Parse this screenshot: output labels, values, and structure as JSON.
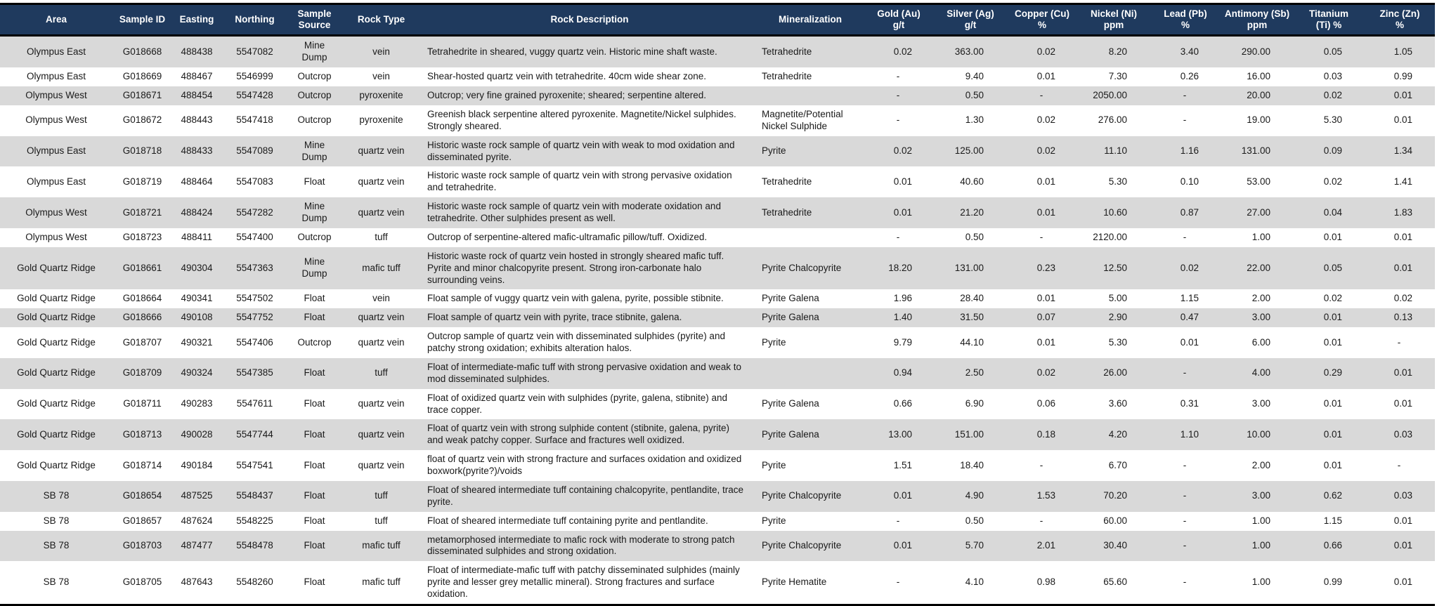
{
  "colors": {
    "header_bg": "#1f3a5e",
    "header_text": "#ffffff",
    "row_alt_bg": "#d9d9d9",
    "row_bg": "#ffffff",
    "border": "#000000",
    "body_text": "#1a1a1a"
  },
  "table": {
    "columns": [
      "Area",
      "Sample ID",
      "Easting",
      "Northing",
      "Sample\nSource",
      "Rock Type",
      "Rock Description",
      "Mineralization",
      "Gold (Au)\ng/t",
      "Silver (Ag)\ng/t",
      "Copper (Cu)\n%",
      "Nickel (Ni)\nppm",
      "Lead (Pb)\n%",
      "Antimony (Sb)\nppm",
      "Titanium\n(Ti) %",
      "Zinc (Zn)\n%"
    ],
    "rows": [
      [
        "Olympus East",
        "G018668",
        "488438",
        "5547082",
        "Mine Dump",
        "vein",
        "Tetrahedrite in sheared, vuggy quartz vein. Historic mine shaft waste.",
        "Tetrahedrite",
        "0.02",
        "363.00",
        "0.02",
        "8.20",
        "3.40",
        "290.00",
        "0.05",
        "1.05"
      ],
      [
        "Olympus East",
        "G018669",
        "488467",
        "5546999",
        "Outcrop",
        "vein",
        "Shear-hosted quartz vein with tetrahedrite. 40cm wide shear zone.",
        "Tetrahedrite",
        "-",
        "9.40",
        "0.01",
        "7.30",
        "0.26",
        "16.00",
        "0.03",
        "0.99"
      ],
      [
        "Olympus West",
        "G018671",
        "488454",
        "5547428",
        "Outcrop",
        "pyroxenite",
        "Outcrop; very fine grained pyroxenite; sheared; serpentine altered.",
        "",
        "-",
        "0.50",
        "-",
        "2050.00",
        "-",
        "20.00",
        "0.02",
        "0.01"
      ],
      [
        "Olympus West",
        "G018672",
        "488443",
        "5547418",
        "Outcrop",
        "pyroxenite",
        "Greenish black serpentine altered pyroxenite. Magnetite/Nickel sulphides. Strongly sheared.",
        "Magnetite/Potential Nickel Sulphide",
        "-",
        "1.30",
        "0.02",
        "276.00",
        "-",
        "19.00",
        "5.30",
        "0.01"
      ],
      [
        "Olympus East",
        "G018718",
        "488433",
        "5547089",
        "Mine Dump",
        "quartz vein",
        "Historic waste rock sample of quartz vein with weak to mod oxidation and disseminated pyrite.",
        "Pyrite",
        "0.02",
        "125.00",
        "0.02",
        "11.10",
        "1.16",
        "131.00",
        "0.09",
        "1.34"
      ],
      [
        "Olympus East",
        "G018719",
        "488464",
        "5547083",
        "Float",
        "quartz vein",
        "Historic waste rock sample of quartz vein with strong pervasive oxidation and tetrahedrite.",
        "Tetrahedrite",
        "0.01",
        "40.60",
        "0.01",
        "5.30",
        "0.10",
        "53.00",
        "0.02",
        "1.41"
      ],
      [
        "Olympus West",
        "G018721",
        "488424",
        "5547282",
        "Mine Dump",
        "quartz vein",
        "Historic waste rock sample of quartz vein with moderate oxidation and tetrahedrite. Other sulphides present as well.",
        "Tetrahedrite",
        "0.01",
        "21.20",
        "0.01",
        "10.60",
        "0.87",
        "27.00",
        "0.04",
        "1.83"
      ],
      [
        "Olympus West",
        "G018723",
        "488411",
        "5547400",
        "Outcrop",
        "tuff",
        "Outcrop of serpentine-altered mafic-ultramafic pillow/tuff. Oxidized.",
        "",
        "-",
        "0.50",
        "-",
        "2120.00",
        "-",
        "1.00",
        "0.01",
        "0.01"
      ],
      [
        "Gold Quartz Ridge",
        "G018661",
        "490304",
        "5547363",
        "Mine Dump",
        "mafic tuff",
        "Historic waste rock of quartz vein hosted in strongly sheared mafic tuff. Pyrite and minor chalcopyrite present. Strong iron-carbonate halo surrounding veins.",
        "Pyrite Chalcopyrite",
        "18.20",
        "131.00",
        "0.23",
        "12.50",
        "0.02",
        "22.00",
        "0.05",
        "0.01"
      ],
      [
        "Gold Quartz Ridge",
        "G018664",
        "490341",
        "5547502",
        "Float",
        "vein",
        "Float sample of vuggy quartz vein with galena, pyrite, possible stibnite.",
        "Pyrite Galena",
        "1.96",
        "28.40",
        "0.01",
        "5.00",
        "1.15",
        "2.00",
        "0.02",
        "0.02"
      ],
      [
        "Gold Quartz Ridge",
        "G018666",
        "490108",
        "5547752",
        "Float",
        "quartz vein",
        "Float sample of quartz vein with pyrite, trace stibnite, galena.",
        "Pyrite Galena",
        "1.40",
        "31.50",
        "0.07",
        "2.90",
        "0.47",
        "3.00",
        "0.01",
        "0.13"
      ],
      [
        "Gold Quartz Ridge",
        "G018707",
        "490321",
        "5547406",
        "Outcrop",
        "quartz vein",
        "Outcrop sample of quartz vein with disseminated sulphides (pyrite) and patchy strong oxidation; exhibits alteration halos.",
        "Pyrite",
        "9.79",
        "44.10",
        "0.01",
        "5.30",
        "0.01",
        "6.00",
        "0.01",
        "-"
      ],
      [
        "Gold Quartz Ridge",
        "G018709",
        "490324",
        "5547385",
        "Float",
        "tuff",
        "Float of intermediate-mafic tuff with strong pervasive oxidation and weak to mod disseminated sulphides.",
        "",
        "0.94",
        "2.50",
        "0.02",
        "26.00",
        "-",
        "4.00",
        "0.29",
        "0.01"
      ],
      [
        "Gold Quartz Ridge",
        "G018711",
        "490283",
        "5547611",
        "Float",
        "quartz vein",
        "Float of oxidized quartz vein with sulphides (pyrite, galena, stibnite) and trace copper.",
        "Pyrite Galena",
        "0.66",
        "6.90",
        "0.06",
        "3.60",
        "0.31",
        "3.00",
        "0.01",
        "0.01"
      ],
      [
        "Gold Quartz Ridge",
        "G018713",
        "490028",
        "5547744",
        "Float",
        "quartz vein",
        "Float of quartz vein with strong sulphide content (stibnite, galena, pyrite) and weak patchy copper. Surface and fractures well oxidized.",
        "Pyrite Galena",
        "13.00",
        "151.00",
        "0.18",
        "4.20",
        "1.10",
        "10.00",
        "0.01",
        "0.03"
      ],
      [
        "Gold Quartz Ridge",
        "G018714",
        "490184",
        "5547541",
        "Float",
        "quartz vein",
        "float of quartz vein with strong fracture and surfaces oxidation and oxidized boxwork(pyrite?)/voids",
        "Pyrite",
        "1.51",
        "18.40",
        "-",
        "6.70",
        "-",
        "2.00",
        "0.01",
        "-"
      ],
      [
        "SB 78",
        "G018654",
        "487525",
        "5548437",
        "Float",
        "tuff",
        "Float of sheared intermediate tuff containing chalcopyrite, pentlandite, trace pyrite.",
        "Pyrite Chalcopyrite",
        "0.01",
        "4.90",
        "1.53",
        "70.20",
        "-",
        "3.00",
        "0.62",
        "0.03"
      ],
      [
        "SB 78",
        "G018657",
        "487624",
        "5548225",
        "Float",
        "tuff",
        "Float of sheared intermediate tuff containing pyrite and pentlandite.",
        "Pyrite",
        "-",
        "0.50",
        "-",
        "60.00",
        "-",
        "1.00",
        "1.15",
        "0.01"
      ],
      [
        "SB 78",
        "G018703",
        "487477",
        "5548478",
        "Float",
        "mafic tuff",
        "metamorphosed intermediate to mafic rock with moderate to strong patch disseminated sulphides and strong oxidation.",
        "Pyrite Chalcopyrite",
        "0.01",
        "5.70",
        "2.01",
        "30.40",
        "-",
        "1.00",
        "0.66",
        "0.01"
      ],
      [
        "SB 78",
        "G018705",
        "487643",
        "5548260",
        "Float",
        "mafic tuff",
        "Float of intermediate-mafic tuff with patchy disseminated sulphides (mainly pyrite and lesser grey metallic mineral). Strong fractures and surface oxidation.",
        "Pyrite Hematite",
        "-",
        "4.10",
        "0.98",
        "65.60",
        "-",
        "1.00",
        "0.99",
        "0.01"
      ]
    ]
  }
}
